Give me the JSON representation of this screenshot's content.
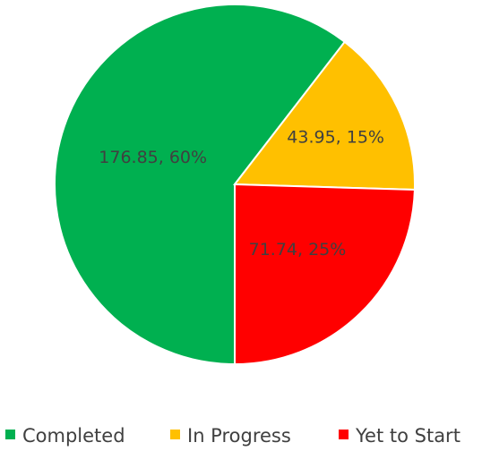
{
  "chart_data": {
    "type": "pie",
    "title": "",
    "slices": [
      {
        "name": "Completed",
        "value": 176.85,
        "percent": 60,
        "label": "176.85, 60%",
        "color": "#00B050"
      },
      {
        "name": "In Progress",
        "value": 43.95,
        "percent": 15,
        "label": "43.95, 15%",
        "color": "#FFC000"
      },
      {
        "name": "Yet to Start",
        "value": 71.74,
        "percent": 25,
        "label": "71.74, 25%",
        "color": "#FF0000"
      }
    ],
    "legend": {
      "position": "bottom"
    }
  }
}
